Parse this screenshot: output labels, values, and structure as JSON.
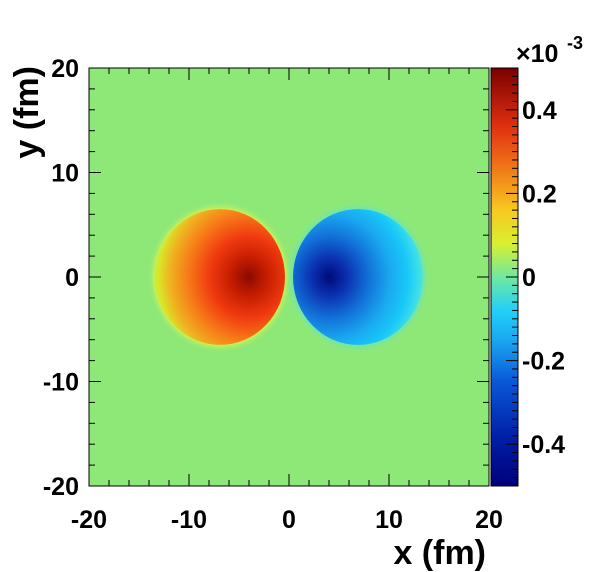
{
  "chart_data": {
    "type": "heatmap",
    "xlabel": "x (fm)",
    "ylabel": "y (fm)",
    "xlim": [
      -20,
      20
    ],
    "ylim": [
      -20,
      20
    ],
    "x_ticks": [
      "-20",
      "-10",
      "0",
      "10",
      "20"
    ],
    "y_ticks": [
      "-20",
      "-10",
      "0",
      "10",
      "20"
    ],
    "colorbar": {
      "exponent_multiplier": "×10",
      "exponent": "-3",
      "range": [
        -0.5,
        0.5
      ],
      "ticks": [
        "-0.4",
        "-0.2",
        "0",
        "0.2",
        "0.4"
      ],
      "tick_values": [
        -0.4,
        -0.2,
        0,
        0.2,
        0.4
      ]
    },
    "field": {
      "description_free": true,
      "lobes": [
        {
          "center_x": -6.9,
          "center_y": 0,
          "radius": 6.5,
          "peak_x": -3.0,
          "peak_value": 0.5
        },
        {
          "center_x": 6.9,
          "center_y": 0,
          "radius": 6.5,
          "peak_x": 3.0,
          "peak_value": -0.5
        }
      ]
    },
    "grid": false
  }
}
